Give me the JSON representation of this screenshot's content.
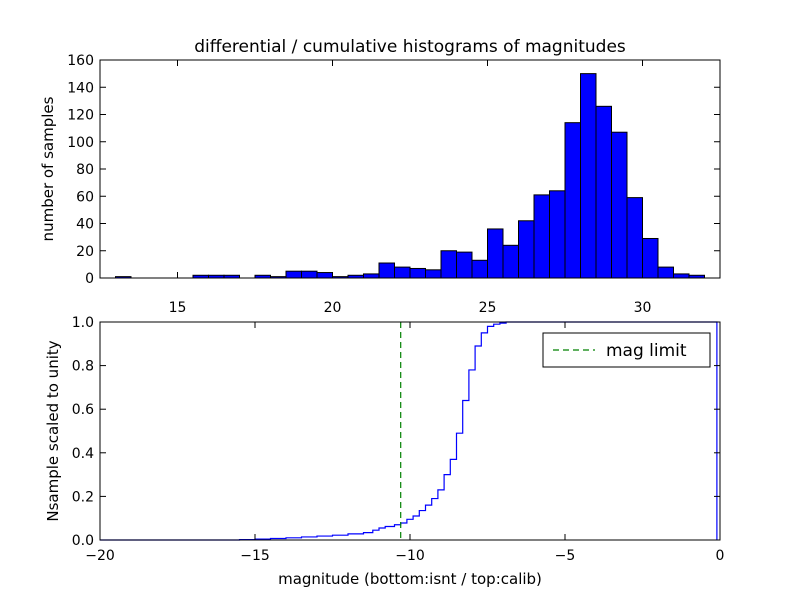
{
  "chart_data": [
    {
      "type": "bar",
      "title": "differential / cumulative histograms of magnitudes",
      "xlabel": "",
      "ylabel": "number of samples",
      "xlim": [
        12.5,
        32.5
      ],
      "ylim": [
        0,
        160
      ],
      "xticks": [
        15,
        20,
        25,
        30
      ],
      "yticks": [
        0,
        20,
        40,
        60,
        80,
        100,
        120,
        140,
        160
      ],
      "bar_color": "#0000ff",
      "bin_width": 0.5,
      "bin_starts": [
        12.5,
        13.0,
        13.5,
        14.0,
        14.5,
        15.0,
        15.5,
        16.0,
        16.5,
        17.0,
        17.5,
        18.0,
        18.5,
        19.0,
        19.5,
        20.0,
        20.5,
        21.0,
        21.5,
        22.0,
        22.5,
        23.0,
        23.5,
        24.0,
        24.5,
        25.0,
        25.5,
        26.0,
        26.5,
        27.0,
        27.5,
        28.0,
        28.5,
        29.0,
        29.5,
        30.0,
        30.5,
        31.0,
        31.5
      ],
      "values": [
        0,
        1,
        0,
        0,
        0,
        0,
        2,
        2,
        2,
        0,
        2,
        1,
        5,
        5,
        4,
        1,
        2,
        3,
        11,
        8,
        7,
        6,
        20,
        19,
        13,
        36,
        24,
        42,
        61,
        64,
        114,
        150,
        126,
        107,
        59,
        29,
        8,
        3,
        2
      ]
    },
    {
      "type": "line",
      "title": "",
      "xlabel": "magnitude (bottom:isnt / top:calib)",
      "ylabel": "Nsample scaled to unity",
      "xlim": [
        -20,
        0
      ],
      "ylim": [
        0,
        1
      ],
      "xticks": [
        -20,
        -15,
        -10,
        -5,
        0
      ],
      "xtick_labels": [
        "−20",
        "−15",
        "−10",
        "−5",
        "0"
      ],
      "yticks": [
        0.0,
        0.2,
        0.4,
        0.6,
        0.8,
        1.0
      ],
      "ytick_labels": [
        "0.0",
        "0.2",
        "0.4",
        "0.6",
        "0.8",
        "1.0"
      ],
      "legend_position": "top-right",
      "series": [
        {
          "name": "",
          "style": "step",
          "color": "#0000ff",
          "x": [
            -20,
            -15.5,
            -15,
            -14.5,
            -14,
            -13.5,
            -13,
            -12.5,
            -12,
            -11.5,
            -11.2,
            -11,
            -10.8,
            -10.5,
            -10.3,
            -10.1,
            -9.9,
            -9.7,
            -9.5,
            -9.3,
            -9.1,
            -8.9,
            -8.7,
            -8.5,
            -8.3,
            -8.1,
            -7.9,
            -7.7,
            -7.5,
            -7.3,
            -7.1,
            -6.9,
            -6.7
          ],
          "y": [
            0,
            0.002,
            0.004,
            0.007,
            0.01,
            0.014,
            0.018,
            0.022,
            0.028,
            0.034,
            0.045,
            0.055,
            0.062,
            0.07,
            0.078,
            0.095,
            0.11,
            0.135,
            0.16,
            0.19,
            0.23,
            0.3,
            0.37,
            0.49,
            0.64,
            0.78,
            0.89,
            0.95,
            0.98,
            0.99,
            0.995,
            1.0,
            1.0
          ]
        },
        {
          "name": "mag limit",
          "style": "dashed-vertical",
          "color": "#008000",
          "x_value": -10.3
        }
      ]
    }
  ]
}
